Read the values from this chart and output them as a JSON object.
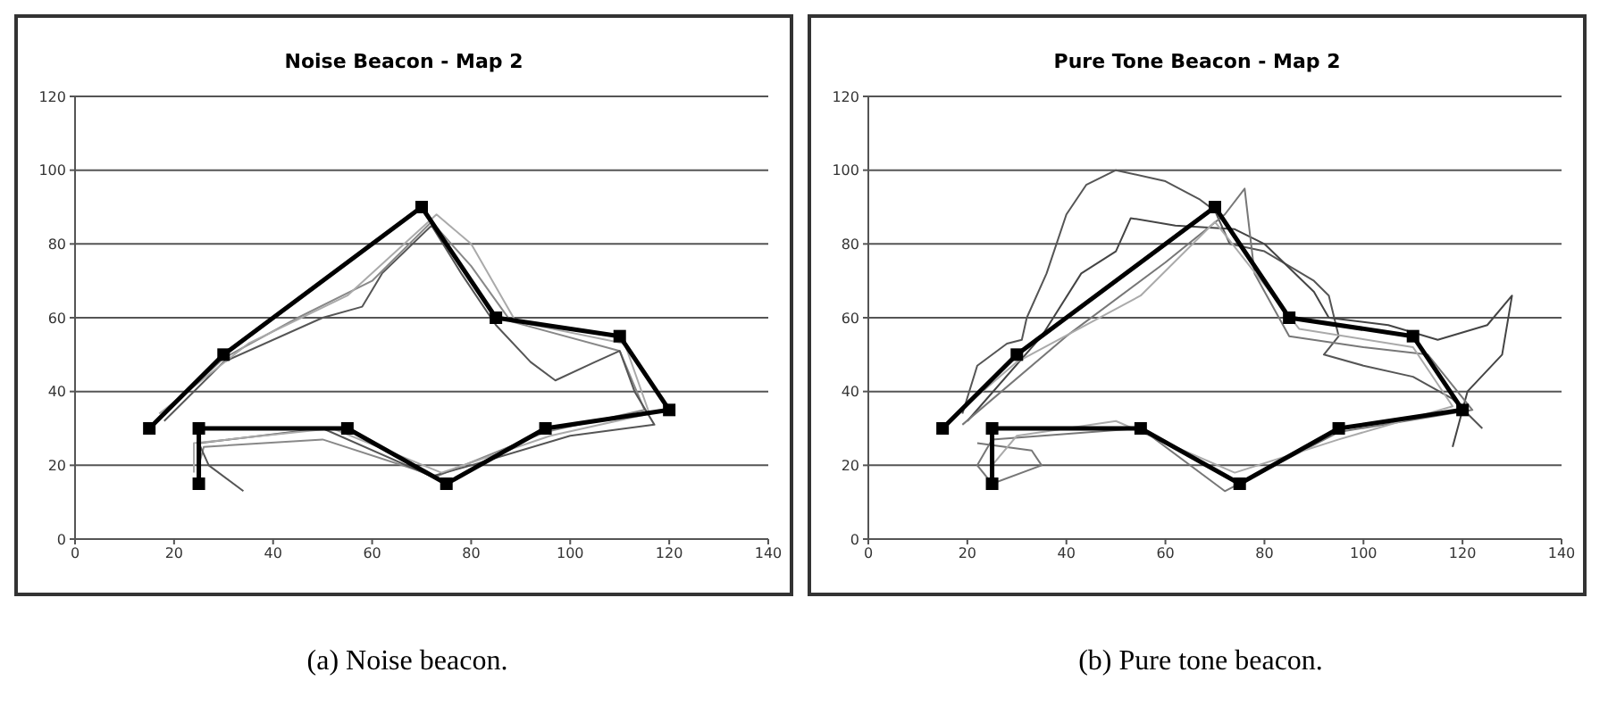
{
  "chart_data": [
    {
      "type": "line",
      "title": "Noise Beacon - Map 2",
      "annotations": [
        "(a) Noise beacon."
      ],
      "xlim": [
        0,
        140
      ],
      "xticks": [
        0,
        20,
        40,
        60,
        80,
        100,
        120,
        140
      ],
      "ylim": [
        0,
        120
      ],
      "yticks": [
        0,
        20,
        40,
        60,
        80,
        100,
        120
      ],
      "grid": "y",
      "legend": false,
      "series": [
        {
          "color": "#888888",
          "marker": "none",
          "x": [
            17,
            30,
            45,
            60,
            72,
            80,
            88,
            110,
            115,
            95,
            73,
            50,
            26,
            25
          ],
          "values": [
            33,
            49,
            60,
            70,
            86,
            74,
            59,
            51,
            35,
            29,
            17,
            27,
            25,
            20
          ]
        },
        {
          "color": "#555555",
          "marker": "none",
          "x": [
            18,
            30,
            50,
            58,
            62,
            72,
            78,
            85,
            92,
            97,
            105,
            110,
            113,
            117,
            100,
            80,
            72,
            50,
            25,
            27,
            34
          ],
          "values": [
            32,
            48,
            60,
            63,
            72,
            85,
            72,
            58,
            48,
            43,
            48,
            51,
            40,
            31,
            28,
            20,
            17,
            30,
            26,
            20,
            13
          ]
        },
        {
          "color": "#aaaaaa",
          "marker": "none",
          "x": [
            17,
            35,
            55,
            73,
            80,
            89,
            111,
            116,
            96,
            74,
            52,
            24,
            24
          ],
          "values": [
            34,
            53,
            66,
            88,
            80,
            59,
            53,
            34,
            28,
            18,
            30,
            26,
            18
          ]
        },
        {
          "color": "#000000",
          "marker": "square",
          "x": [
            15,
            30,
            70,
            85,
            110,
            120,
            95,
            75,
            55,
            25,
            25
          ],
          "values": [
            30,
            50,
            90,
            60,
            55,
            35,
            30,
            15,
            30,
            30,
            15
          ]
        }
      ]
    },
    {
      "type": "line",
      "title": "Pure Tone Beacon - Map 2",
      "annotations": [
        "(b) Pure tone beacon."
      ],
      "xlim": [
        0,
        140
      ],
      "xticks": [
        0,
        20,
        40,
        60,
        80,
        100,
        120,
        140
      ],
      "ylim": [
        0,
        120
      ],
      "yticks": [
        0,
        20,
        40,
        60,
        80,
        100,
        120
      ],
      "grid": "y",
      "legend": false,
      "series": [
        {
          "color": "#555555",
          "marker": "none",
          "x": [
            19,
            22,
            28,
            31,
            32,
            36,
            40,
            44,
            50,
            60,
            67,
            70,
            73,
            80,
            90,
            93,
            95,
            92,
            100,
            110,
            118,
            124
          ],
          "values": [
            34,
            47,
            53,
            54,
            60,
            72,
            88,
            96,
            100,
            97,
            92,
            89,
            80,
            78,
            70,
            66,
            55,
            50,
            47,
            44,
            38,
            30
          ]
        },
        {
          "color": "#444444",
          "marker": "none",
          "x": [
            20,
            35,
            43,
            50,
            53,
            62,
            74,
            80,
            90,
            93,
            105,
            115,
            125,
            130,
            128,
            121,
            118
          ],
          "values": [
            32,
            55,
            72,
            78,
            87,
            85,
            84,
            80,
            67,
            60,
            58,
            54,
            58,
            66,
            50,
            40,
            25
          ]
        },
        {
          "color": "#777777",
          "marker": "none",
          "x": [
            19,
            40,
            60,
            72,
            76,
            78,
            85,
            100,
            113,
            122,
            95,
            72,
            55,
            25,
            22,
            25,
            35,
            33,
            22
          ],
          "values": [
            31,
            55,
            75,
            88,
            95,
            72,
            55,
            52,
            50,
            35,
            29,
            13,
            30,
            27,
            20,
            15,
            20,
            24,
            26
          ]
        },
        {
          "color": "#aaaaaa",
          "marker": "none",
          "x": [
            17,
            30,
            55,
            70,
            87,
            110,
            118,
            95,
            74,
            50,
            30,
            25
          ],
          "values": [
            33,
            48,
            66,
            86,
            57,
            52,
            36,
            27,
            18,
            32,
            28,
            20
          ]
        },
        {
          "color": "#000000",
          "marker": "square",
          "x": [
            15,
            30,
            70,
            85,
            110,
            120,
            95,
            75,
            55,
            25,
            25
          ],
          "values": [
            30,
            50,
            90,
            60,
            55,
            35,
            30,
            15,
            30,
            30,
            15
          ]
        }
      ]
    }
  ]
}
